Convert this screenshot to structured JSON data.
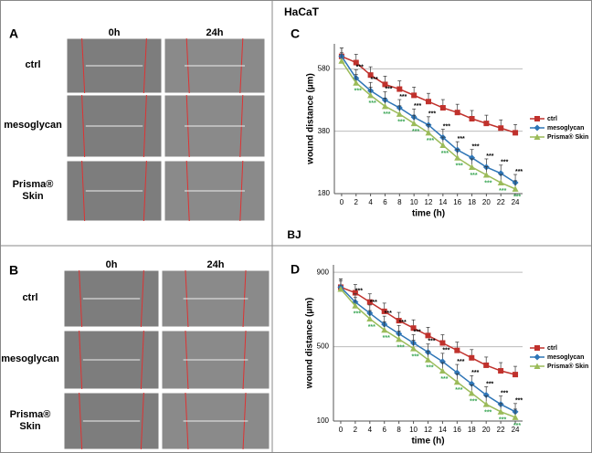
{
  "cell_lines": [
    "HaCaT",
    "BJ"
  ],
  "panels": [
    {
      "letter": "A",
      "columns": [
        "0h",
        "24h"
      ],
      "rows": [
        "ctrl",
        "mesoglycan",
        "Prisma® Skin"
      ]
    },
    {
      "letter": "B",
      "columns": [
        "0h",
        "24h"
      ],
      "rows": [
        "ctrl",
        "mesoglycan",
        "Prisma® Skin"
      ]
    }
  ],
  "chart_data": [
    {
      "type": "line",
      "letter": "C",
      "x_label": "time (h)",
      "y_label": "wound distance (µm)",
      "significance": "***",
      "x": [
        0,
        2,
        4,
        6,
        8,
        10,
        12,
        14,
        16,
        18,
        20,
        22,
        24
      ],
      "xticks": [
        0,
        2,
        4,
        6,
        8,
        10,
        12,
        14,
        16,
        18,
        20,
        22,
        24
      ],
      "xlim": [
        -1,
        25
      ],
      "ylim": [
        180,
        660
      ],
      "yticks": [
        180,
        380,
        580
      ],
      "grid": true,
      "series": [
        {
          "name": "ctrl",
          "color": "#c0312c",
          "marker": "square",
          "values": [
            620,
            600,
            560,
            530,
            515,
            495,
            475,
            455,
            440,
            420,
            405,
            390,
            375
          ]
        },
        {
          "name": "mesoglycan",
          "color": "#2e75b6",
          "marker": "diamond",
          "values": [
            620,
            550,
            510,
            480,
            455,
            425,
            400,
            360,
            320,
            295,
            265,
            245,
            215
          ]
        },
        {
          "name": "Prisma® Skin",
          "color": "#9bbb59",
          "marker": "triangle",
          "values": [
            605,
            535,
            495,
            460,
            435,
            405,
            375,
            335,
            295,
            265,
            240,
            215,
            195
          ]
        }
      ]
    },
    {
      "type": "line",
      "letter": "D",
      "x_label": "time (h)",
      "y_label": "wound distance (µm)",
      "significance": "***",
      "x": [
        0,
        2,
        4,
        6,
        8,
        10,
        12,
        14,
        16,
        18,
        20,
        22,
        24
      ],
      "xticks": [
        0,
        2,
        4,
        6,
        8,
        10,
        12,
        14,
        16,
        18,
        20,
        22,
        24
      ],
      "xlim": [
        -1,
        25
      ],
      "ylim": [
        100,
        940
      ],
      "yticks": [
        100,
        500,
        900
      ],
      "grid": true,
      "series": [
        {
          "name": "ctrl",
          "color": "#c0312c",
          "marker": "square",
          "values": [
            820,
            790,
            740,
            690,
            640,
            600,
            560,
            520,
            480,
            440,
            400,
            370,
            350
          ]
        },
        {
          "name": "mesoglycan",
          "color": "#2e75b6",
          "marker": "diamond",
          "values": [
            820,
            740,
            680,
            620,
            570,
            520,
            470,
            420,
            360,
            300,
            240,
            190,
            150
          ]
        },
        {
          "name": "Prisma® Skin",
          "color": "#9bbb59",
          "marker": "triangle",
          "values": [
            810,
            720,
            650,
            590,
            540,
            490,
            430,
            370,
            310,
            250,
            190,
            150,
            120
          ]
        }
      ]
    }
  ]
}
